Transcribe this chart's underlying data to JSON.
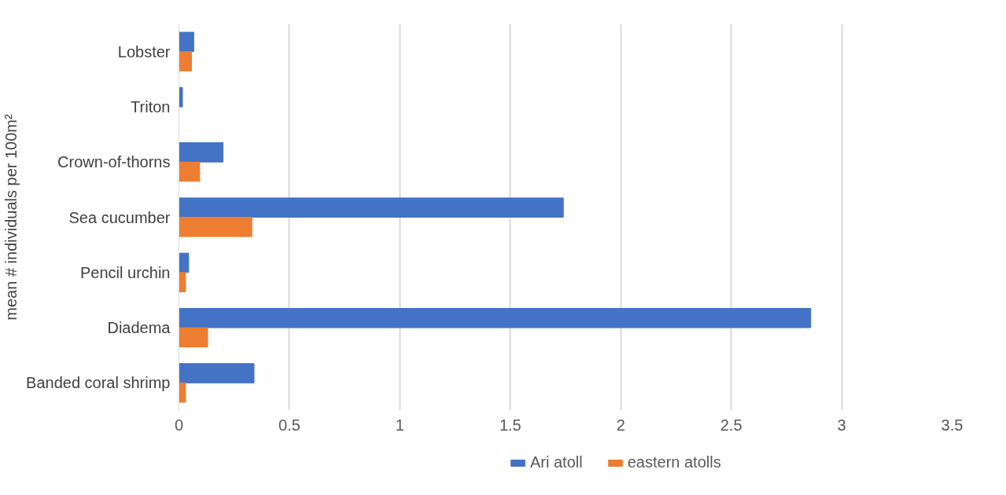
{
  "chart_data": {
    "type": "bar",
    "orientation": "horizontal",
    "ylabel": "mean # individuals per 100m²",
    "categories": [
      "Lobster",
      "Triton",
      "Crown-of-thorns",
      "Sea cucumber",
      "Pencil urchin",
      "Diadema",
      "Banded coral shrimp"
    ],
    "series": [
      {
        "name": "Ari atoll",
        "color": "#4472c4",
        "values": [
          0.067,
          0.016,
          0.2,
          1.74,
          0.044,
          2.86,
          0.34
        ]
      },
      {
        "name": "eastern atolls",
        "color": "#ed7d31",
        "values": [
          0.057,
          0,
          0.094,
          0.33,
          0.03,
          0.13,
          0.03
        ]
      }
    ],
    "xlim": [
      0,
      3.5
    ],
    "xticks": [
      0,
      0.5,
      1,
      1.5,
      2,
      2.5,
      3,
      3.5
    ],
    "grid": "x",
    "legend": "bottom"
  }
}
